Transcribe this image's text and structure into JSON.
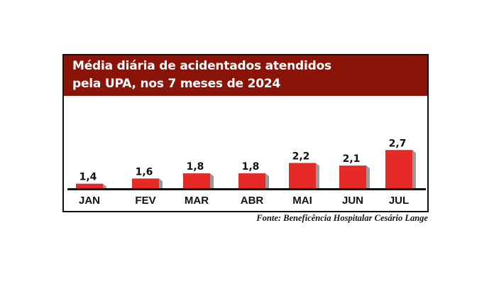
{
  "chart_data": {
    "type": "bar",
    "title": "Média diária de acidentados atendidos pela UPA, nos 7 meses de 2024",
    "title_lines": [
      "Média diária de acidentados atendidos",
      "pela UPA, nos 7 meses de 2024"
    ],
    "categories": [
      "JAN",
      "FEV",
      "MAR",
      "ABR",
      "MAI",
      "JUN",
      "JUL"
    ],
    "values": [
      1.4,
      1.6,
      1.8,
      1.8,
      2.2,
      2.1,
      2.7
    ],
    "data_labels": [
      "1,4",
      "1,6",
      "1,8",
      "1,8",
      "2,2",
      "2,1",
      "2,7"
    ],
    "xlabel": "",
    "ylabel": "",
    "ylim": [
      1.2,
      2.8
    ],
    "grid": false,
    "colors": {
      "bar": "#e52a28",
      "bar_shadow": "#9a9a9a",
      "header": "#8b1409"
    }
  },
  "source": "Fonte: Beneficência Hospitalar Cesário Lange"
}
